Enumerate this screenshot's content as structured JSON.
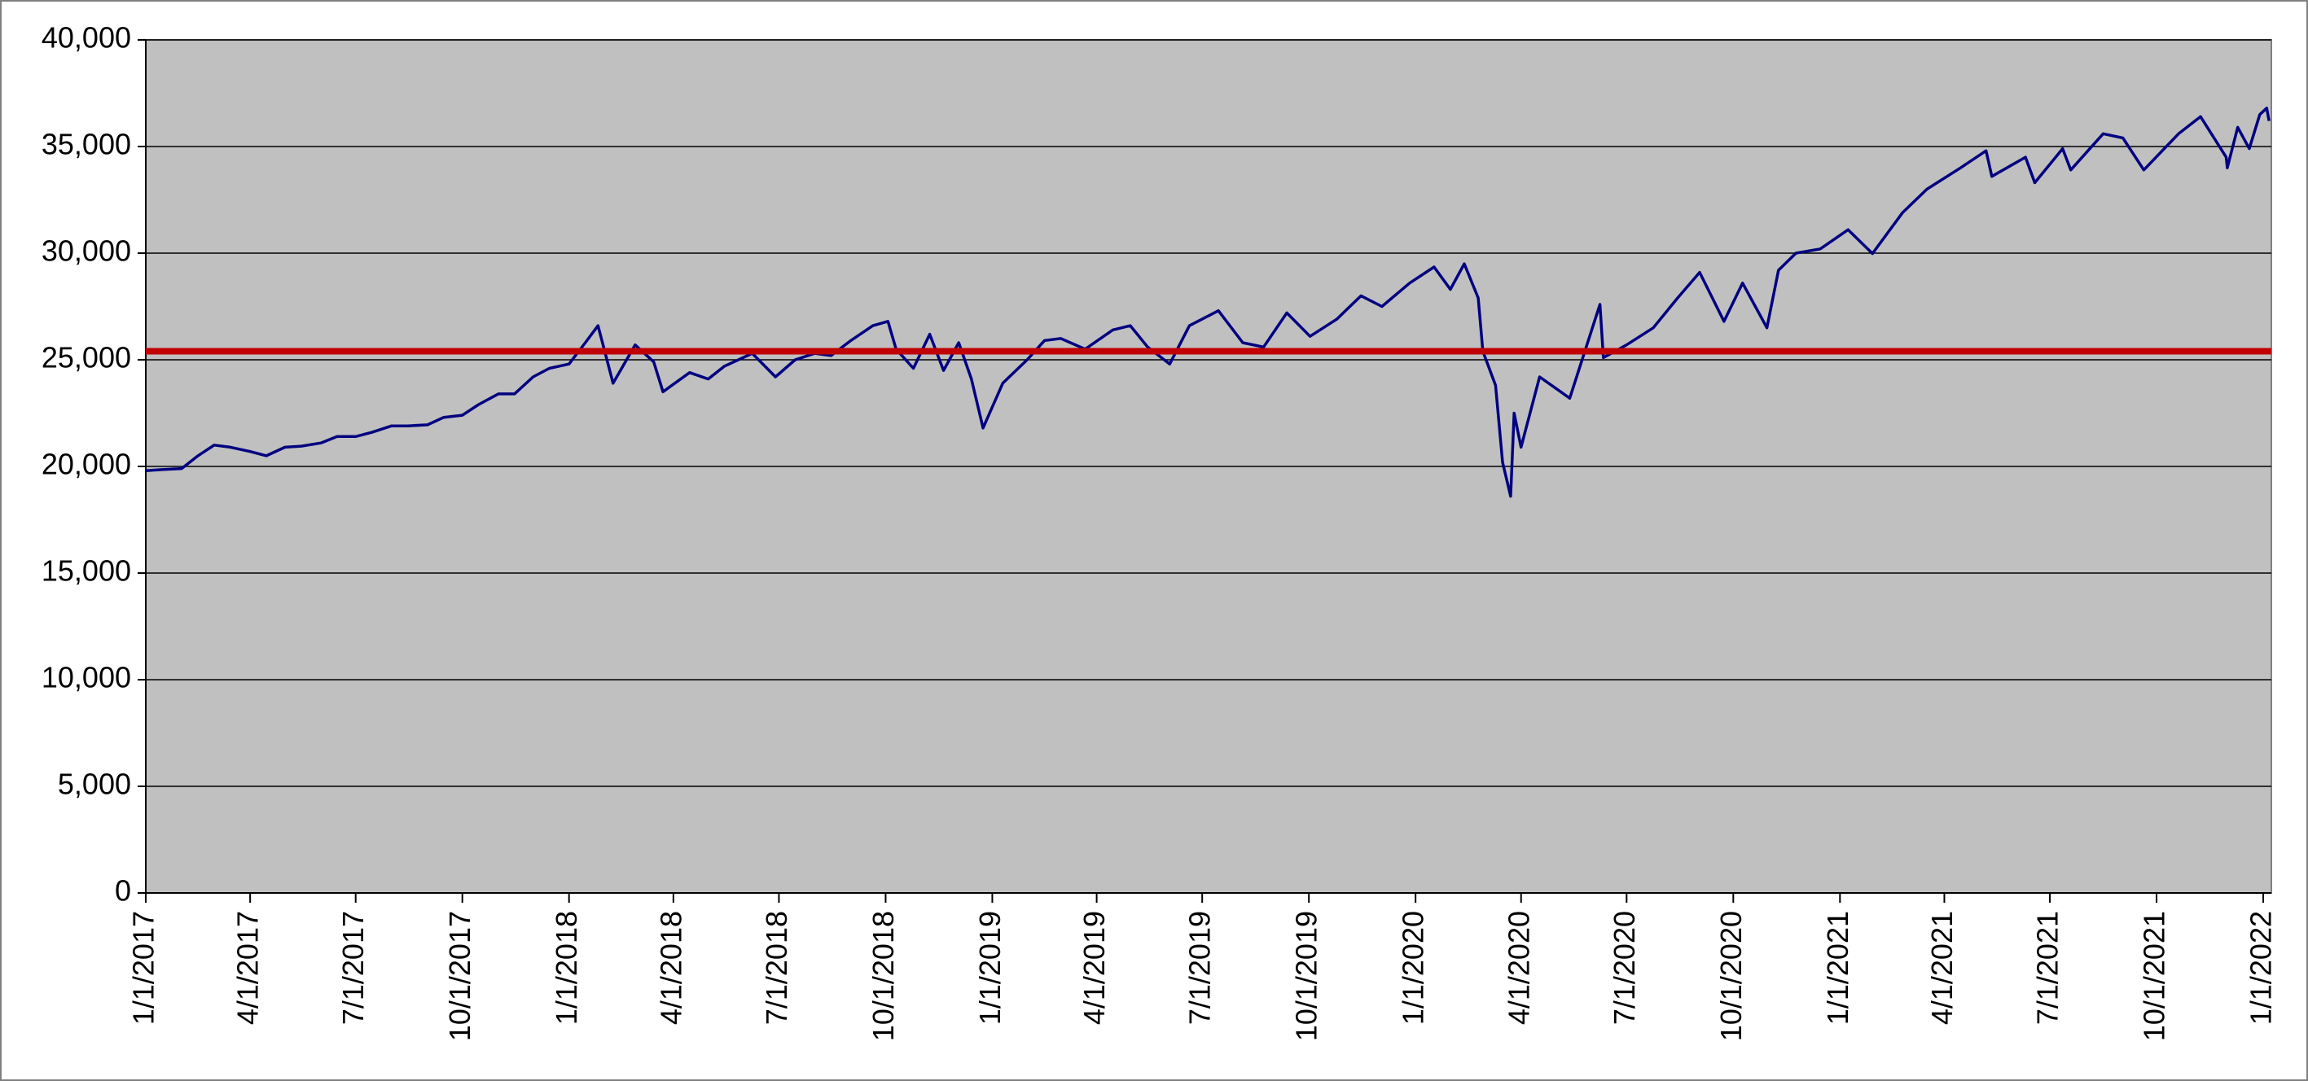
{
  "chart_data": {
    "type": "line",
    "x": [
      "2017-01-01",
      "2017-01-15",
      "2017-02-01",
      "2017-02-15",
      "2017-03-01",
      "2017-03-15",
      "2017-04-01",
      "2017-04-15",
      "2017-05-01",
      "2017-05-15",
      "2017-06-01",
      "2017-06-15",
      "2017-07-01",
      "2017-07-15",
      "2017-08-01",
      "2017-08-15",
      "2017-09-01",
      "2017-09-15",
      "2017-10-01",
      "2017-10-15",
      "2017-11-01",
      "2017-11-15",
      "2017-12-01",
      "2017-12-15",
      "2018-01-01",
      "2018-01-15",
      "2018-01-26",
      "2018-02-08",
      "2018-02-27",
      "2018-03-15",
      "2018-03-23",
      "2018-04-15",
      "2018-05-01",
      "2018-05-15",
      "2018-06-08",
      "2018-06-28",
      "2018-07-15",
      "2018-08-01",
      "2018-08-15",
      "2018-09-01",
      "2018-09-20",
      "2018-10-03",
      "2018-10-10",
      "2018-10-25",
      "2018-11-08",
      "2018-11-20",
      "2018-12-03",
      "2018-12-14",
      "2018-12-24",
      "2019-01-10",
      "2019-01-31",
      "2019-02-15",
      "2019-03-01",
      "2019-03-22",
      "2019-04-15",
      "2019-04-30",
      "2019-05-15",
      "2019-06-03",
      "2019-06-20",
      "2019-07-15",
      "2019-08-05",
      "2019-08-23",
      "2019-09-12",
      "2019-10-02",
      "2019-10-25",
      "2019-11-15",
      "2019-12-03",
      "2019-12-27",
      "2020-01-17",
      "2020-01-31",
      "2020-02-12",
      "2020-02-24",
      "2020-02-28",
      "2020-03-10",
      "2020-03-16",
      "2020-03-23",
      "2020-03-26",
      "2020-04-01",
      "2020-04-17",
      "2020-05-13",
      "2020-06-08",
      "2020-06-11",
      "2020-07-01",
      "2020-07-24",
      "2020-08-14",
      "2020-09-02",
      "2020-09-23",
      "2020-10-09",
      "2020-10-30",
      "2020-11-09",
      "2020-11-24",
      "2020-12-15",
      "2021-01-08",
      "2021-01-29",
      "2021-02-24",
      "2021-03-17",
      "2021-04-15",
      "2021-05-07",
      "2021-05-12",
      "2021-06-10",
      "2021-06-18",
      "2021-07-12",
      "2021-07-19",
      "2021-08-16",
      "2021-09-02",
      "2021-09-20",
      "2021-10-20",
      "2021-11-08",
      "2021-11-30",
      "2021-12-01",
      "2021-12-10",
      "2021-12-20",
      "2021-12-29",
      "2022-01-04",
      "2022-01-06"
    ],
    "values": [
      19800,
      19850,
      19900,
      20500,
      21000,
      20900,
      20700,
      20500,
      20900,
      20950,
      21100,
      21400,
      21400,
      21600,
      21900,
      21900,
      21950,
      22300,
      22400,
      22900,
      23400,
      23400,
      24200,
      24600,
      24800,
      25800,
      26600,
      23900,
      25700,
      24900,
      23500,
      24400,
      24100,
      24700,
      25300,
      24200,
      25000,
      25300,
      25200,
      25900,
      26600,
      26800,
      25500,
      24600,
      26200,
      24500,
      25800,
      24100,
      21800,
      23900,
      25000,
      25900,
      26000,
      25500,
      26400,
      26600,
      25600,
      24800,
      26600,
      27300,
      25800,
      25600,
      27200,
      26100,
      26900,
      28000,
      27500,
      28600,
      29350,
      28300,
      29500,
      27900,
      25400,
      23800,
      20200,
      18600,
      22500,
      20900,
      24200,
      23200,
      27600,
      25100,
      25700,
      26500,
      27900,
      29100,
      26800,
      28600,
      26500,
      29200,
      30000,
      30200,
      31100,
      29980,
      31900,
      33000,
      34000,
      34800,
      33600,
      34500,
      33300,
      34900,
      33900,
      35600,
      35400,
      33900,
      35600,
      36400,
      34500,
      34000,
      35900,
      34900,
      36500,
      36800,
      36200
    ],
    "color": "#000080",
    "reference_line": {
      "value": 25400,
      "color": "#c00000"
    },
    "xlim": [
      "2017-01-01",
      "2022-01-08"
    ],
    "xticks": [
      {
        "value": "2017-01-01",
        "label": "1/1/2017"
      },
      {
        "value": "2017-04-01",
        "label": "4/1/2017"
      },
      {
        "value": "2017-07-01",
        "label": "7/1/2017"
      },
      {
        "value": "2017-10-01",
        "label": "10/1/2017"
      },
      {
        "value": "2018-01-01",
        "label": "1/1/2018"
      },
      {
        "value": "2018-04-01",
        "label": "4/1/2018"
      },
      {
        "value": "2018-07-01",
        "label": "7/1/2018"
      },
      {
        "value": "2018-10-01",
        "label": "10/1/2018"
      },
      {
        "value": "2019-01-01",
        "label": "1/1/2019"
      },
      {
        "value": "2019-04-01",
        "label": "4/1/2019"
      },
      {
        "value": "2019-07-01",
        "label": "7/1/2019"
      },
      {
        "value": "2019-10-01",
        "label": "10/1/2019"
      },
      {
        "value": "2020-01-01",
        "label": "1/1/2020"
      },
      {
        "value": "2020-04-01",
        "label": "4/1/2020"
      },
      {
        "value": "2020-07-01",
        "label": "7/1/2020"
      },
      {
        "value": "2020-10-01",
        "label": "10/1/2020"
      },
      {
        "value": "2021-01-01",
        "label": "1/1/2021"
      },
      {
        "value": "2021-04-01",
        "label": "4/1/2021"
      },
      {
        "value": "2021-07-01",
        "label": "7/1/2021"
      },
      {
        "value": "2021-10-01",
        "label": "10/1/2021"
      },
      {
        "value": "2022-01-01",
        "label": "1/1/2022"
      }
    ],
    "ylim": [
      0,
      40000
    ],
    "yticks": [
      0,
      {
        "value": 5000,
        "label": "5,000"
      },
      {
        "value": 10000,
        "label": "10,000"
      },
      {
        "value": 15000,
        "label": "15,000"
      },
      {
        "value": 20000,
        "label": "20,000"
      },
      {
        "value": 25000,
        "label": "25,000"
      },
      {
        "value": 30000,
        "label": "30,000"
      },
      {
        "value": 35000,
        "label": "35,000"
      },
      {
        "value": 40000,
        "label": "40,000"
      }
    ],
    "grid": true,
    "plot_background": "#c0c0c0"
  }
}
